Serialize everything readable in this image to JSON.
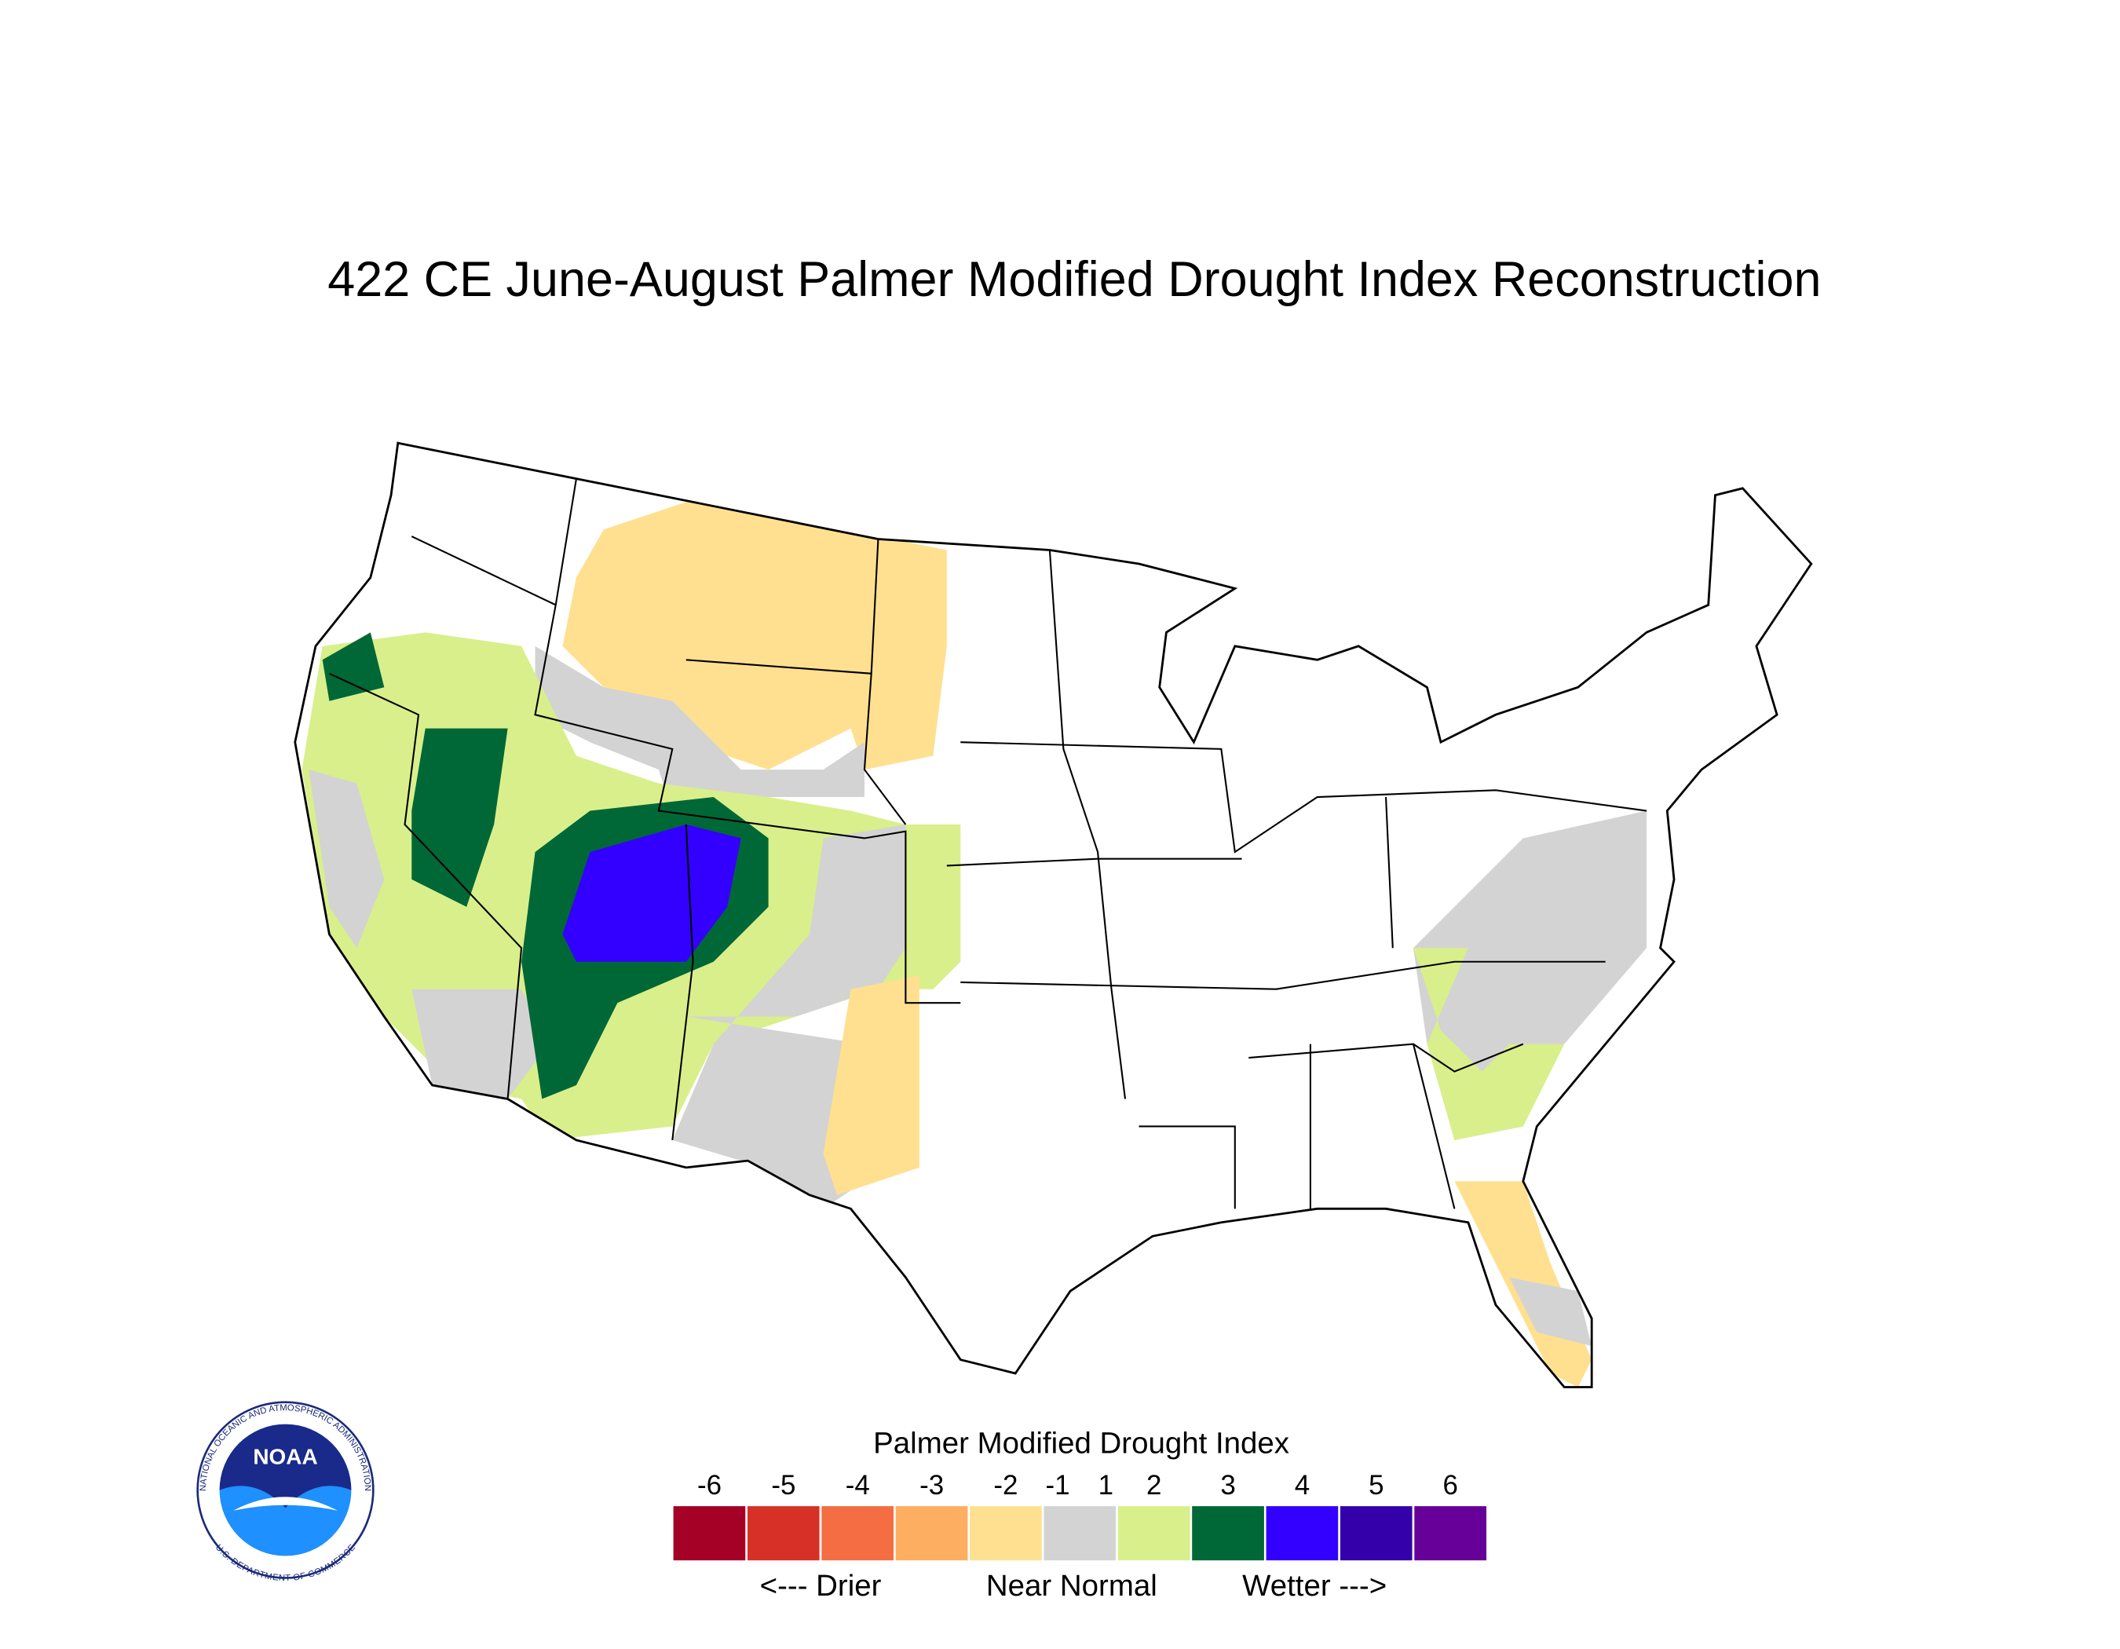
{
  "title": "422 CE  June-August  Palmer Modified Drought Index Reconstruction",
  "legend": {
    "title": "Palmer Modified Drought Index",
    "ticks": [
      -6,
      -5,
      -4,
      -3,
      -2,
      -1,
      1,
      2,
      3,
      4,
      5,
      6
    ],
    "colors": [
      "#a50026",
      "#d73027",
      "#f46d43",
      "#fdae61",
      "#fee090",
      "#d3d3d3",
      "#d9ef8b",
      "#006837",
      "#3300ff",
      "#3300aa",
      "#660099"
    ],
    "captions": [
      "<--- Drier",
      "Near Normal",
      "Wetter --->"
    ]
  },
  "logo": {
    "text": "NOAA",
    "ring_top": "NATIONAL OCEANIC AND ATMOSPHERIC ADMINISTRATION",
    "ring_bottom": "U.S. DEPARTMENT OF COMMERCE"
  }
}
